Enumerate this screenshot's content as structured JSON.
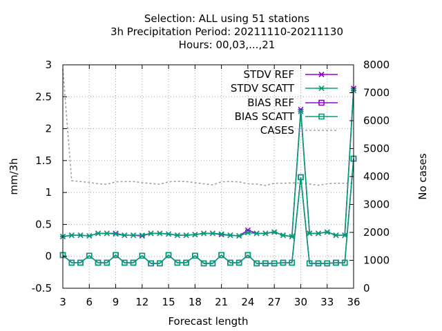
{
  "chart_data": {
    "type": "line",
    "title_lines": [
      "Selection: ALL using    51 stations",
      "3h Precipitation   Period: 20211110-20211130",
      "Hours:  00,03,...,21"
    ],
    "xlabel": "Forecast length",
    "ylabel": "mm/3h",
    "y2label": "No cases",
    "xlim": [
      3,
      36
    ],
    "ylim": [
      -0.5,
      3
    ],
    "y2lim": [
      0,
      8000
    ],
    "x_ticks": [
      "3",
      "6",
      "9",
      "12",
      "15",
      "18",
      "21",
      "24",
      "27",
      "30",
      "33",
      "36"
    ],
    "y_ticks": [
      "-0.5",
      "0",
      "0.5",
      "1",
      "1.5",
      "2",
      "2.5",
      "3"
    ],
    "y2_ticks": [
      "0",
      "1000",
      "2000",
      "3000",
      "4000",
      "5000",
      "6000",
      "7000",
      "8000"
    ],
    "grid": true,
    "legend_position": "top-right",
    "x": [
      3,
      4,
      5,
      6,
      7,
      8,
      9,
      10,
      11,
      12,
      13,
      14,
      15,
      16,
      17,
      18,
      19,
      20,
      21,
      22,
      23,
      24,
      25,
      26,
      27,
      28,
      29,
      30,
      31,
      32,
      33,
      34,
      35,
      36
    ],
    "series": [
      {
        "name": "STDV REF",
        "axis": "left",
        "color": "#9400d3",
        "marker": "x",
        "values": [
          0.31,
          0.33,
          0.33,
          0.32,
          0.36,
          0.36,
          0.36,
          0.33,
          0.33,
          0.32,
          0.36,
          0.36,
          0.35,
          0.33,
          0.33,
          0.34,
          0.36,
          0.36,
          0.34,
          0.33,
          0.32,
          0.41,
          0.36,
          0.36,
          0.38,
          0.33,
          0.31,
          2.3,
          0.36,
          0.36,
          0.38,
          0.33,
          0.33,
          2.63
        ]
      },
      {
        "name": "STDV SCATT",
        "axis": "left",
        "color": "#009e73",
        "marker": "x",
        "values": [
          0.31,
          0.33,
          0.33,
          0.32,
          0.36,
          0.36,
          0.35,
          0.33,
          0.33,
          0.33,
          0.36,
          0.36,
          0.35,
          0.33,
          0.33,
          0.34,
          0.36,
          0.36,
          0.35,
          0.33,
          0.32,
          0.37,
          0.36,
          0.36,
          0.38,
          0.33,
          0.31,
          2.27,
          0.36,
          0.36,
          0.38,
          0.33,
          0.33,
          2.6
        ]
      },
      {
        "name": "BIAS REF",
        "axis": "left",
        "color": "#9400d3",
        "marker": "square",
        "values": [
          0.02,
          -0.1,
          -0.1,
          0.01,
          -0.1,
          -0.1,
          0.02,
          -0.1,
          -0.1,
          0.01,
          -0.11,
          -0.11,
          0.02,
          -0.1,
          -0.1,
          0.01,
          -0.11,
          -0.11,
          0.02,
          -0.1,
          -0.1,
          0.02,
          -0.11,
          -0.11,
          -0.11,
          -0.1,
          -0.1,
          1.24,
          -0.11,
          -0.11,
          -0.11,
          -0.1,
          -0.1,
          1.53
        ]
      },
      {
        "name": "BIAS SCATT",
        "axis": "left",
        "color": "#009e73",
        "marker": "square",
        "values": [
          0.02,
          -0.1,
          -0.1,
          0.01,
          -0.1,
          -0.1,
          0.02,
          -0.1,
          -0.1,
          0.01,
          -0.11,
          -0.11,
          0.02,
          -0.1,
          -0.1,
          0.01,
          -0.11,
          -0.11,
          0.02,
          -0.1,
          -0.1,
          0.02,
          -0.11,
          -0.11,
          -0.11,
          -0.1,
          -0.1,
          1.24,
          -0.11,
          -0.11,
          -0.11,
          -0.1,
          -0.1,
          1.53
        ]
      },
      {
        "name": "CASES",
        "axis": "right",
        "color": "#a0a0a0",
        "marker": "none",
        "dashed": true,
        "values": [
          7850,
          3850,
          3820,
          3790,
          3740,
          3720,
          3810,
          3820,
          3820,
          3780,
          3750,
          3720,
          3810,
          3830,
          3820,
          3780,
          3740,
          3700,
          3810,
          3820,
          3810,
          3740,
          3730,
          3680,
          3760,
          3760,
          3770,
          3770,
          3730,
          3690,
          3740,
          3760,
          3760,
          3760
        ]
      }
    ]
  }
}
